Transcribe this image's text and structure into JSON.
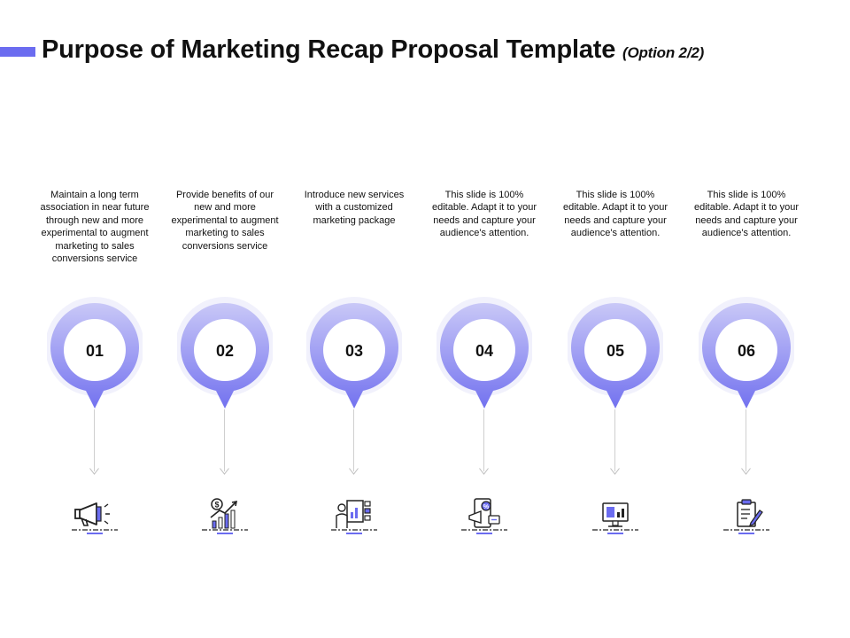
{
  "title": {
    "main": "Purpose of Marketing Recap Proposal Template",
    "sub": "(Option 2/2)"
  },
  "colors": {
    "accent": "#6b6cf0",
    "pin_light": "#b9b8f5",
    "pin_dark": "#7a79f0"
  },
  "steps": [
    {
      "number": "01",
      "text": "Maintain a long term association in near future through new and more experimental to augment marketing to sales conversions service",
      "icon": "megaphone-icon"
    },
    {
      "number": "02",
      "text": "Provide benefits of our new and more experimental to augment marketing to sales conversions service",
      "icon": "growth-chart-icon"
    },
    {
      "number": "03",
      "text": "Introduce new services with a customized marketing package",
      "icon": "presentation-icon"
    },
    {
      "number": "04",
      "text": "This slide is 100% editable. Adapt it to your needs and capture your audience's attention.",
      "icon": "mobile-marketing-icon"
    },
    {
      "number": "05",
      "text": "This slide is 100% editable. Adapt it to your needs and capture your audience's attention.",
      "icon": "computer-analytics-icon"
    },
    {
      "number": "06",
      "text": "This slide is 100% editable. Adapt it to your needs and capture your audience's attention.",
      "icon": "clipboard-icon"
    }
  ]
}
